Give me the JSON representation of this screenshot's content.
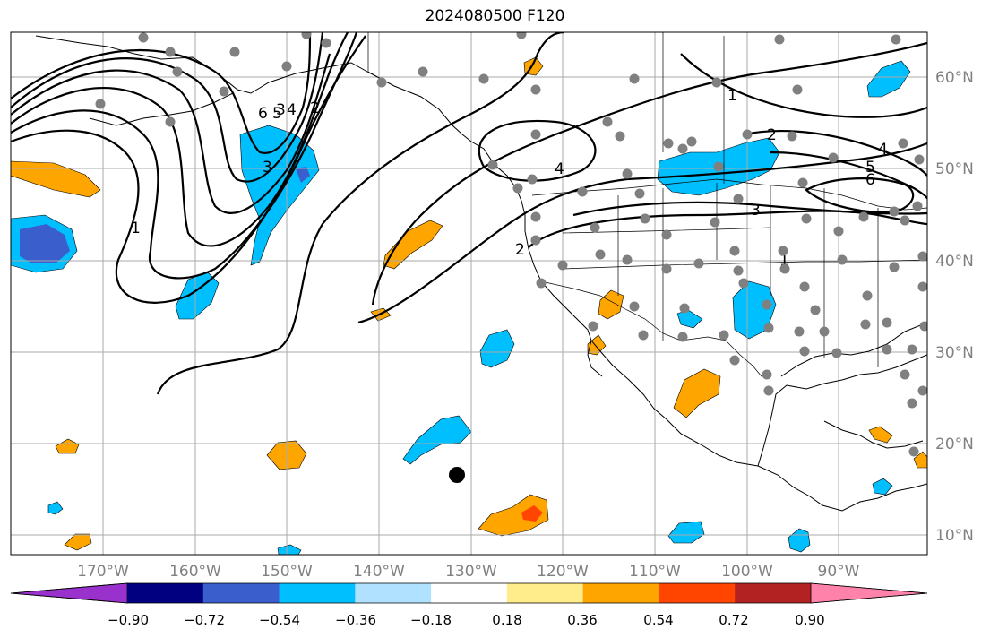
{
  "title": "2024080500 F120",
  "lon_ticks": [
    "170°W",
    "160°W",
    "150°W",
    "140°W",
    "130°W",
    "120°W",
    "110°W",
    "100°W",
    "90°W"
  ],
  "lat_ticks": [
    "60°N",
    "50°N",
    "40°N",
    "30°N",
    "20°N",
    "10°N"
  ],
  "colorbar": {
    "ticks": [
      "−0.90",
      "−0.72",
      "−0.54",
      "−0.36",
      "−0.18",
      "0.18",
      "0.36",
      "0.54",
      "0.72",
      "0.90"
    ],
    "colors": [
      "#9932cc",
      "#000080",
      "#3a5fcd",
      "#00bfff",
      "#b0e2ff",
      "#ffffff",
      "#ffec8b",
      "#ffa500",
      "#ff4500",
      "#b22222",
      "#ff82ab"
    ]
  },
  "contour_labels": [
    "1",
    "2",
    "3",
    "4",
    "5",
    "6",
    "1",
    "2",
    "3",
    "4",
    "5",
    "6",
    "4",
    "3",
    "2",
    "1"
  ],
  "colors": {
    "positive": "#ffa500",
    "positive_strong": "#ff4500",
    "negative": "#00bfff",
    "negative_strong": "#3a5fcd",
    "station": "#808080",
    "gridline": "#aaaaaa"
  }
}
